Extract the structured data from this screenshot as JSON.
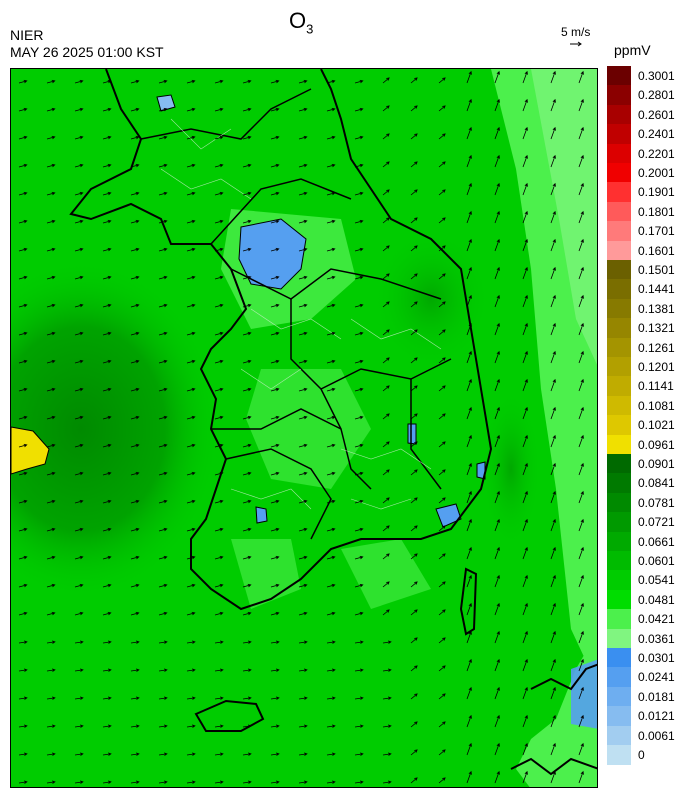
{
  "header": {
    "species": "O",
    "species_sub": "3",
    "agency": "NIER",
    "datetime": "MAY 26 2025 01:00 KST",
    "wind_scale": "5 m/s",
    "unit": "ppmV"
  },
  "legend": {
    "labels": [
      "0.3001",
      "0.2801",
      "0.2601",
      "0.2401",
      "0.2201",
      "0.2001",
      "0.1901",
      "0.1801",
      "0.1701",
      "0.1601",
      "0.1501",
      "0.1441",
      "0.1381",
      "0.1321",
      "0.1261",
      "0.1201",
      "0.1141",
      "0.1081",
      "0.1021",
      "0.0961",
      "0.0901",
      "0.0841",
      "0.0781",
      "0.0721",
      "0.0661",
      "0.0601",
      "0.0541",
      "0.0481",
      "0.0421",
      "0.0361",
      "0.0301",
      "0.0241",
      "0.0181",
      "0.0121",
      "0.0061",
      "0"
    ],
    "colors": [
      "#6b0000",
      "#8b0000",
      "#a80000",
      "#c00000",
      "#dc0000",
      "#f00000",
      "#ff3030",
      "#ff5a5a",
      "#ff7a7a",
      "#ff9a9a",
      "#6b6000",
      "#7a6e00",
      "#877a00",
      "#968600",
      "#a49400",
      "#b2a000",
      "#c0ac00",
      "#cfba00",
      "#dec800",
      "#f0e000",
      "#006a00",
      "#007a00",
      "#008a00",
      "#009a00",
      "#00aa00",
      "#00bb00",
      "#00cc00",
      "#00dd00",
      "#4cf04c",
      "#80f580",
      "#3a8ff0",
      "#559ff0",
      "#6eaef0",
      "#86bcf0",
      "#a2cdf0",
      "#bfe0f2"
    ]
  },
  "map": {
    "background_color": "#00cc00",
    "wind_direction": "southwest-to-northeast"
  }
}
